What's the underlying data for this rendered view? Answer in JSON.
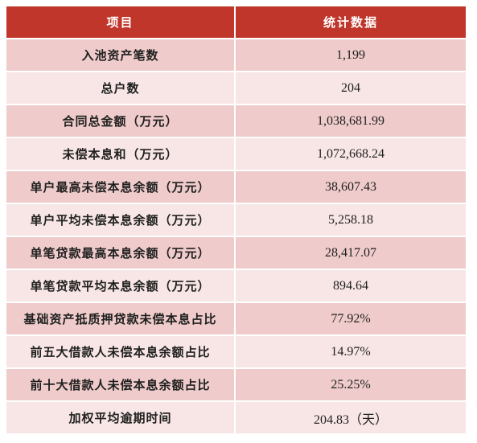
{
  "table": {
    "header": {
      "item": "项目",
      "value": "统计数据"
    },
    "rows": [
      {
        "label": "入池资产笔数",
        "value": "1,199"
      },
      {
        "label": "总户数",
        "value": "204"
      },
      {
        "label": "合同总金额（万元）",
        "value": "1,038,681.99"
      },
      {
        "label": "未偿本息和（万元）",
        "value": "1,072,668.24"
      },
      {
        "label": "单户最高未偿本息余额（万元）",
        "value": "38,607.43"
      },
      {
        "label": "单户平均未偿本息余额（万元）",
        "value": "5,258.18"
      },
      {
        "label": "单笔贷款最高本息余额（万元）",
        "value": "28,417.07"
      },
      {
        "label": "单笔贷款平均本息余额（万元）",
        "value": "894.64"
      },
      {
        "label": "基础资产抵质押贷款未偿本息占比",
        "value": "77.92%"
      },
      {
        "label": "前五大借款人未偿本息余额占比",
        "value": "14.97%"
      },
      {
        "label": "前十大借款人未偿本息余额占比",
        "value": "25.25%"
      },
      {
        "label": "加权平均逾期时间",
        "value": "204.83（天）"
      }
    ],
    "colors": {
      "header_bg": "#c0362b",
      "row_shade": "#efcccb",
      "row_plain": "#f7e6e5"
    }
  }
}
